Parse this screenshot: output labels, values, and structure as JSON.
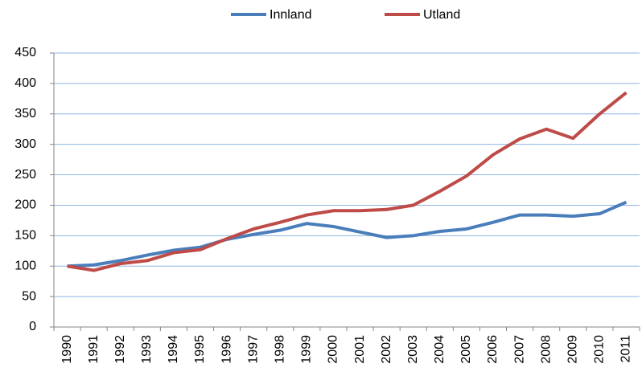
{
  "chart_data": {
    "type": "line",
    "categories": [
      "1990",
      "1991",
      "1992",
      "1993",
      "1994",
      "1995",
      "1996",
      "1997",
      "1998",
      "1999",
      "2000",
      "2001",
      "2002",
      "2003",
      "2004",
      "2005",
      "2006",
      "2007",
      "2008",
      "2009",
      "2010",
      "2011"
    ],
    "series": [
      {
        "name": "Innland",
        "color": "#4a7ebb",
        "values": [
          100,
          102,
          109,
          118,
          126,
          131,
          144,
          152,
          159,
          170,
          165,
          156,
          147,
          150,
          157,
          161,
          172,
          184,
          184,
          182,
          186,
          205
        ]
      },
      {
        "name": "Utland",
        "color": "#be4b48",
        "values": [
          100,
          93,
          104,
          109,
          122,
          127,
          145,
          161,
          172,
          184,
          191,
          191,
          193,
          200,
          223,
          248,
          283,
          309,
          325,
          310,
          350,
          385
        ]
      }
    ],
    "ylim": [
      0,
      450
    ],
    "yticks": [
      0,
      50,
      100,
      150,
      200,
      250,
      300,
      350,
      400,
      450
    ],
    "grid": true,
    "legend": "top"
  }
}
